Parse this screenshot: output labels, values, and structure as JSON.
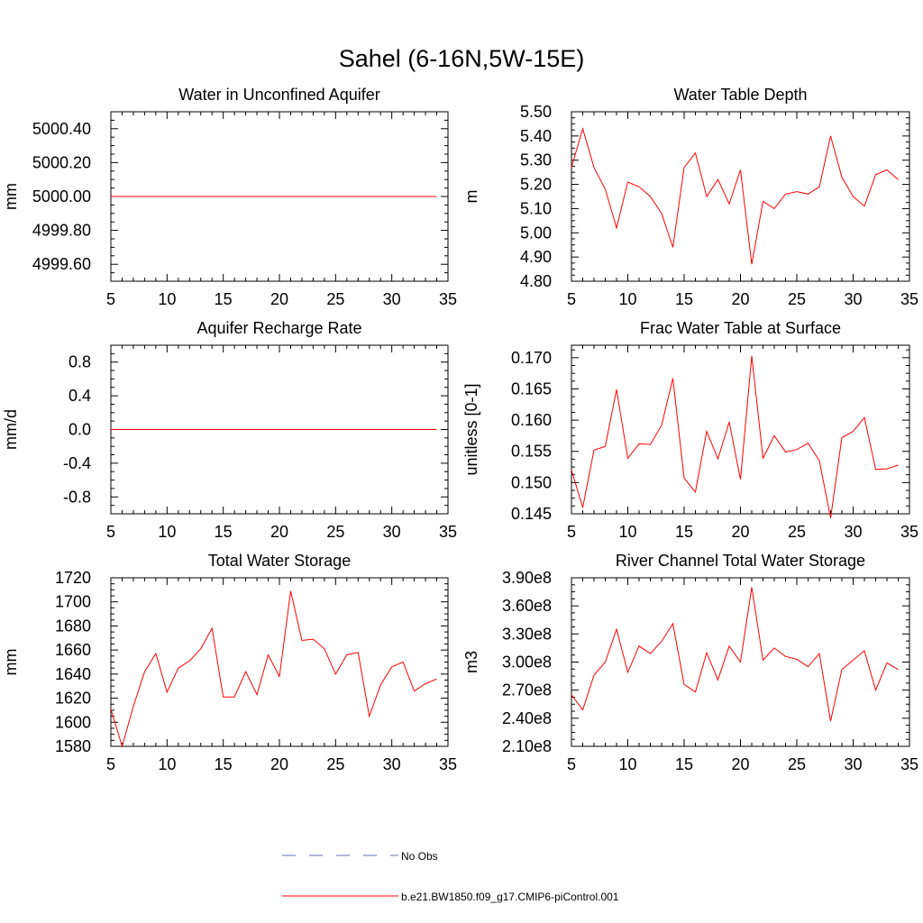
{
  "figure_title": "Sahel (6-16N,5W-15E)",
  "legend": [
    {
      "label": "No Obs",
      "color": "#6670b8",
      "style": "dashed"
    },
    {
      "label": "b.e21.BW1850.f09_g17.CMIP6-piControl.001",
      "color": "#ff0000",
      "style": "solid"
    }
  ],
  "chart_data": [
    {
      "type": "line",
      "title": "Water in Unconfined Aquifer",
      "ylabel": "mm",
      "xlabel": "",
      "xlim": [
        5,
        35
      ],
      "ylim": [
        4999.5,
        5000.5
      ],
      "xticks": [
        5,
        10,
        15,
        20,
        25,
        30,
        35
      ],
      "yticks": [
        4999.6,
        4999.8,
        5000.0,
        5000.2,
        5000.4
      ],
      "ytick_labels": [
        "4999.60",
        "4999.80",
        "5000.00",
        "5000.20",
        "5000.40"
      ],
      "series": [
        {
          "name": "b.e21.BW1850.f09_g17.CMIP6-piControl.001",
          "color": "#ff0000",
          "x": [
            5,
            6,
            7,
            8,
            9,
            10,
            11,
            12,
            13,
            14,
            15,
            16,
            17,
            18,
            19,
            20,
            21,
            22,
            23,
            24,
            25,
            26,
            27,
            28,
            29,
            30,
            31,
            32,
            33,
            34
          ],
          "values": [
            5000,
            5000,
            5000,
            5000,
            5000,
            5000,
            5000,
            5000,
            5000,
            5000,
            5000,
            5000,
            5000,
            5000,
            5000,
            5000,
            5000,
            5000,
            5000,
            5000,
            5000,
            5000,
            5000,
            5000,
            5000,
            5000,
            5000,
            5000,
            5000,
            5000
          ]
        }
      ]
    },
    {
      "type": "line",
      "title": "Water Table Depth",
      "ylabel": "m",
      "xlabel": "",
      "xlim": [
        5,
        35
      ],
      "ylim": [
        4.8,
        5.5
      ],
      "xticks": [
        5,
        10,
        15,
        20,
        25,
        30,
        35
      ],
      "yticks": [
        4.8,
        4.9,
        5.0,
        5.1,
        5.2,
        5.3,
        5.4,
        5.5
      ],
      "ytick_labels": [
        "4.80",
        "4.90",
        "5.00",
        "5.10",
        "5.20",
        "5.30",
        "5.40",
        "5.50"
      ],
      "series": [
        {
          "name": "b.e21.BW1850.f09_g17.CMIP6-piControl.001",
          "color": "#ff0000",
          "x": [
            5,
            6,
            7,
            8,
            9,
            10,
            11,
            12,
            13,
            14,
            15,
            16,
            17,
            18,
            19,
            20,
            21,
            22,
            23,
            24,
            25,
            26,
            27,
            28,
            29,
            30,
            31,
            32,
            33,
            34
          ],
          "values": [
            5.27,
            5.43,
            5.27,
            5.18,
            5.02,
            5.21,
            5.19,
            5.15,
            5.08,
            4.94,
            5.27,
            5.33,
            5.15,
            5.22,
            5.12,
            5.26,
            4.87,
            5.13,
            5.1,
            5.16,
            5.17,
            5.16,
            5.19,
            5.4,
            5.23,
            5.15,
            5.11,
            5.24,
            5.26,
            5.22
          ]
        }
      ]
    },
    {
      "type": "line",
      "title": "Aquifer Recharge Rate",
      "ylabel": "mm/d",
      "xlabel": "",
      "xlim": [
        5,
        35
      ],
      "ylim": [
        -1.0,
        1.0
      ],
      "xticks": [
        5,
        10,
        15,
        20,
        25,
        30,
        35
      ],
      "yticks": [
        -0.8,
        -0.4,
        0.0,
        0.4,
        0.8
      ],
      "ytick_labels": [
        "-0.8",
        "-0.4",
        "0.0",
        "0.4",
        "0.8"
      ],
      "series": [
        {
          "name": "b.e21.BW1850.f09_g17.CMIP6-piControl.001",
          "color": "#ff0000",
          "x": [
            5,
            6,
            7,
            8,
            9,
            10,
            11,
            12,
            13,
            14,
            15,
            16,
            17,
            18,
            19,
            20,
            21,
            22,
            23,
            24,
            25,
            26,
            27,
            28,
            29,
            30,
            31,
            32,
            33,
            34
          ],
          "values": [
            0,
            0,
            0,
            0,
            0,
            0,
            0,
            0,
            0,
            0,
            0,
            0,
            0,
            0,
            0,
            0,
            0,
            0,
            0,
            0,
            0,
            0,
            0,
            0,
            0,
            0,
            0,
            0,
            0,
            0
          ]
        }
      ]
    },
    {
      "type": "line",
      "title": "Frac Water Table at Surface",
      "ylabel": "unitless [0-1]",
      "xlabel": "",
      "xlim": [
        5,
        35
      ],
      "ylim": [
        0.145,
        0.172
      ],
      "xticks": [
        5,
        10,
        15,
        20,
        25,
        30,
        35
      ],
      "yticks": [
        0.145,
        0.15,
        0.155,
        0.16,
        0.165,
        0.17
      ],
      "ytick_labels": [
        "0.145",
        "0.150",
        "0.155",
        "0.160",
        "0.165",
        "0.170"
      ],
      "series": [
        {
          "name": "b.e21.BW1850.f09_g17.CMIP6-piControl.001",
          "color": "#ff0000",
          "x": [
            5,
            6,
            7,
            8,
            9,
            10,
            11,
            12,
            13,
            14,
            15,
            16,
            17,
            18,
            19,
            20,
            21,
            22,
            23,
            24,
            25,
            26,
            27,
            28,
            29,
            30,
            31,
            32,
            33,
            34
          ],
          "values": [
            0.152,
            0.146,
            0.1552,
            0.1558,
            0.1649,
            0.1539,
            0.1562,
            0.1561,
            0.1592,
            0.1667,
            0.1507,
            0.1485,
            0.1582,
            0.1538,
            0.1597,
            0.1505,
            0.1703,
            0.1539,
            0.1575,
            0.1549,
            0.1553,
            0.1563,
            0.1535,
            0.1443,
            0.1572,
            0.1582,
            0.1604,
            0.1521,
            0.1522,
            0.1528
          ]
        }
      ]
    },
    {
      "type": "line",
      "title": "Total Water Storage",
      "ylabel": "mm",
      "xlabel": "",
      "xlim": [
        5,
        35
      ],
      "ylim": [
        1580,
        1720
      ],
      "xticks": [
        5,
        10,
        15,
        20,
        25,
        30,
        35
      ],
      "yticks": [
        1580,
        1600,
        1620,
        1640,
        1660,
        1680,
        1700,
        1720
      ],
      "ytick_labels": [
        "1580",
        "1600",
        "1620",
        "1640",
        "1660",
        "1680",
        "1700",
        "1720"
      ],
      "series": [
        {
          "name": "b.e21.BW1850.f09_g17.CMIP6-piControl.001",
          "color": "#ff0000",
          "x": [
            5,
            6,
            7,
            8,
            9,
            10,
            11,
            12,
            13,
            14,
            15,
            16,
            17,
            18,
            19,
            20,
            21,
            22,
            23,
            24,
            25,
            26,
            27,
            28,
            29,
            30,
            31,
            32,
            33,
            34
          ],
          "values": [
            1611,
            1580,
            1613,
            1642,
            1657,
            1625,
            1645,
            1651,
            1661,
            1678,
            1621,
            1621,
            1642,
            1623,
            1656,
            1638,
            1709,
            1668,
            1669,
            1661,
            1640,
            1656,
            1658,
            1605,
            1631,
            1646,
            1650,
            1626,
            1632,
            1636
          ]
        }
      ]
    },
    {
      "type": "line",
      "title": "River Channel Total Water Storage",
      "ylabel": "m3",
      "xlabel": "",
      "xlim": [
        5,
        35
      ],
      "ylim": [
        210000000.0,
        390000000.0
      ],
      "xticks": [
        5,
        10,
        15,
        20,
        25,
        30,
        35
      ],
      "yticks": [
        210000000.0,
        240000000.0,
        270000000.0,
        300000000.0,
        330000000.0,
        360000000.0,
        390000000.0
      ],
      "ytick_labels": [
        "2.10e8",
        "2.40e8",
        "2.70e8",
        "3.00e8",
        "3.30e8",
        "3.60e8",
        "3.90e8"
      ],
      "series": [
        {
          "name": "b.e21.BW1850.f09_g17.CMIP6-piControl.001",
          "color": "#ff0000",
          "x": [
            5,
            6,
            7,
            8,
            9,
            10,
            11,
            12,
            13,
            14,
            15,
            16,
            17,
            18,
            19,
            20,
            21,
            22,
            23,
            24,
            25,
            26,
            27,
            28,
            29,
            30,
            31,
            32,
            33,
            34
          ],
          "values": [
            265000000.0,
            249000000.0,
            286000000.0,
            300000000.0,
            335000000.0,
            289000000.0,
            317000000.0,
            309000000.0,
            322000000.0,
            341000000.0,
            276000000.0,
            268000000.0,
            310000000.0,
            281000000.0,
            317000000.0,
            300000000.0,
            380000000.0,
            302000000.0,
            315000000.0,
            306000000.0,
            303000000.0,
            295000000.0,
            309000000.0,
            237000000.0,
            292000000.0,
            302000000.0,
            312000000.0,
            270000000.0,
            299000000.0,
            292000000.0
          ]
        }
      ]
    }
  ]
}
